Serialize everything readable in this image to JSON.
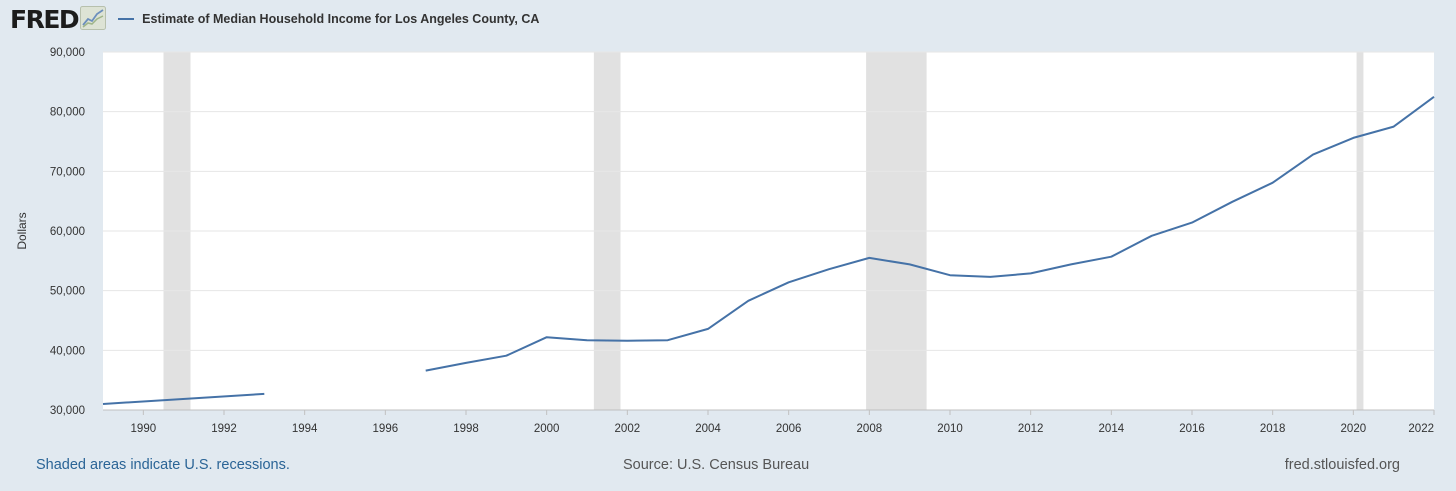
{
  "header": {
    "logo_text": "FRED",
    "logo_icon": "chart-line-icon",
    "series_title": "Estimate of Median Household Income for Los Angeles County, CA"
  },
  "footer": {
    "recession_note": "Shaded areas indicate U.S. recessions.",
    "source": "Source: U.S. Census Bureau",
    "site": "fred.stlouisfed.org"
  },
  "colors": {
    "line": "#4572a7",
    "recession_band": "#e1e1e1",
    "plot_background": "#ffffff",
    "page_background": "#e1e9f0",
    "grid": "#e6e6e6"
  },
  "chart_data": {
    "type": "line",
    "title": "Estimate of Median Household Income for Los Angeles County, CA",
    "xlabel": "",
    "ylabel": "Dollars",
    "xlim": [
      1989,
      2022
    ],
    "ylim": [
      30000,
      90000
    ],
    "grid": true,
    "x_ticks": [
      1990,
      1992,
      1994,
      1996,
      1998,
      2000,
      2002,
      2004,
      2006,
      2008,
      2010,
      2012,
      2014,
      2016,
      2018,
      2020,
      2022
    ],
    "y_ticks": [
      30000,
      40000,
      50000,
      60000,
      70000,
      80000,
      90000
    ],
    "y_tick_labels": [
      "30,000",
      "40,000",
      "50,000",
      "60,000",
      "70,000",
      "80,000",
      "90,000"
    ],
    "recessions": [
      [
        1990.5,
        1991.17
      ],
      [
        2001.17,
        2001.83
      ],
      [
        2007.92,
        2009.42
      ],
      [
        2020.08,
        2020.25
      ]
    ],
    "series": [
      {
        "x": [
          1989,
          1993,
          null,
          1997,
          1998,
          1999,
          2000,
          2001,
          2002,
          2003,
          2004,
          2005,
          2006,
          2007,
          2008,
          2009,
          2010,
          2011,
          2012,
          2013,
          2014,
          2015,
          2016,
          2017,
          2018,
          2019,
          2020,
          2021,
          2022
        ],
        "y": [
          31000,
          32700,
          null,
          36600,
          37900,
          39100,
          42200,
          41700,
          41600,
          41700,
          43600,
          48300,
          51400,
          53600,
          55500,
          54400,
          52600,
          52300,
          52900,
          54400,
          55700,
          59200,
          61400,
          64900,
          68100,
          72800,
          75600,
          77500,
          82500
        ]
      }
    ]
  }
}
